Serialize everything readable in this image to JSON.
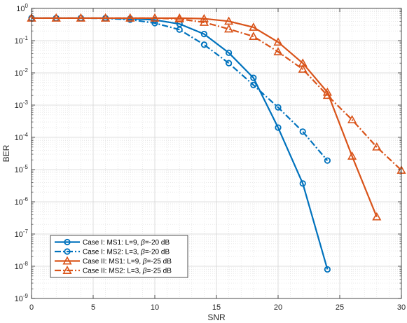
{
  "chart_data": {
    "type": "line",
    "xlabel": "SNR",
    "ylabel": "BER",
    "xlim": [
      0,
      30
    ],
    "ylim_log10": [
      -9,
      0
    ],
    "yscale": "log",
    "grid": true,
    "minor_grid": true,
    "legend_position": "bottom-left",
    "x_ticks": [
      "0",
      "5",
      "10",
      "15",
      "20",
      "25",
      "30"
    ],
    "y_ticks": [
      {
        "base": "10",
        "exp": "-9"
      },
      {
        "base": "10",
        "exp": "-8"
      },
      {
        "base": "10",
        "exp": "-7"
      },
      {
        "base": "10",
        "exp": "-6"
      },
      {
        "base": "10",
        "exp": "-5"
      },
      {
        "base": "10",
        "exp": "-4"
      },
      {
        "base": "10",
        "exp": "-3"
      },
      {
        "base": "10",
        "exp": "-2"
      },
      {
        "base": "10",
        "exp": "-1"
      },
      {
        "base": "10",
        "exp": "0"
      }
    ],
    "series": [
      {
        "name": "Case I: MS1: L=9, β=-20 dB",
        "legend_parts": [
          "Case I: MS1: L=9, ",
          "β",
          "=-20 dB"
        ],
        "color": "#0072BD",
        "dash": "solid",
        "marker": "circle",
        "x": [
          0,
          2,
          4,
          6,
          8,
          10,
          12,
          14,
          16,
          18,
          20,
          22,
          24
        ],
        "y": [
          0.5,
          0.5,
          0.5,
          0.5,
          0.48,
          0.44,
          0.33,
          0.16,
          0.042,
          0.007,
          0.0002,
          3.7e-06,
          8e-09
        ]
      },
      {
        "name": "Case I: MS2: L=3, β=-20 dB",
        "legend_parts": [
          "Case I: MS2: L=3, ",
          "β",
          "=-20 dB"
        ],
        "color": "#0072BD",
        "dash": "dashdot",
        "marker": "circle",
        "x": [
          0,
          2,
          4,
          6,
          8,
          10,
          12,
          14,
          16,
          18,
          20,
          22,
          24
        ],
        "y": [
          0.5,
          0.5,
          0.5,
          0.49,
          0.45,
          0.35,
          0.22,
          0.075,
          0.02,
          0.0042,
          0.00085,
          0.00015,
          1.9e-05
        ]
      },
      {
        "name": "Case II: MS1: L=9, β=-25 dB",
        "legend_parts": [
          "Case II: MS1: L=9, ",
          "β",
          "=-25 dB"
        ],
        "color": "#D95319",
        "dash": "solid",
        "marker": "triangle",
        "x": [
          0,
          2,
          4,
          6,
          8,
          10,
          12,
          14,
          16,
          18,
          20,
          22,
          24,
          26,
          28
        ],
        "y": [
          0.5,
          0.5,
          0.5,
          0.5,
          0.5,
          0.5,
          0.5,
          0.48,
          0.4,
          0.26,
          0.09,
          0.02,
          0.0025,
          2.6e-05,
          3.4e-07
        ]
      },
      {
        "name": "Case II: MS2: L=3, β=-25 dB",
        "legend_parts": [
          "Case II: MS2: L=3, ",
          "β",
          "=-25 dB"
        ],
        "color": "#D95319",
        "dash": "dashdot",
        "marker": "triangle",
        "x": [
          0,
          2,
          4,
          6,
          8,
          10,
          12,
          14,
          16,
          18,
          20,
          22,
          24,
          26,
          28,
          30
        ],
        "y": [
          0.5,
          0.5,
          0.5,
          0.5,
          0.5,
          0.5,
          0.47,
          0.37,
          0.23,
          0.135,
          0.045,
          0.013,
          0.002,
          0.00035,
          5e-05,
          9.5e-06
        ]
      }
    ]
  }
}
